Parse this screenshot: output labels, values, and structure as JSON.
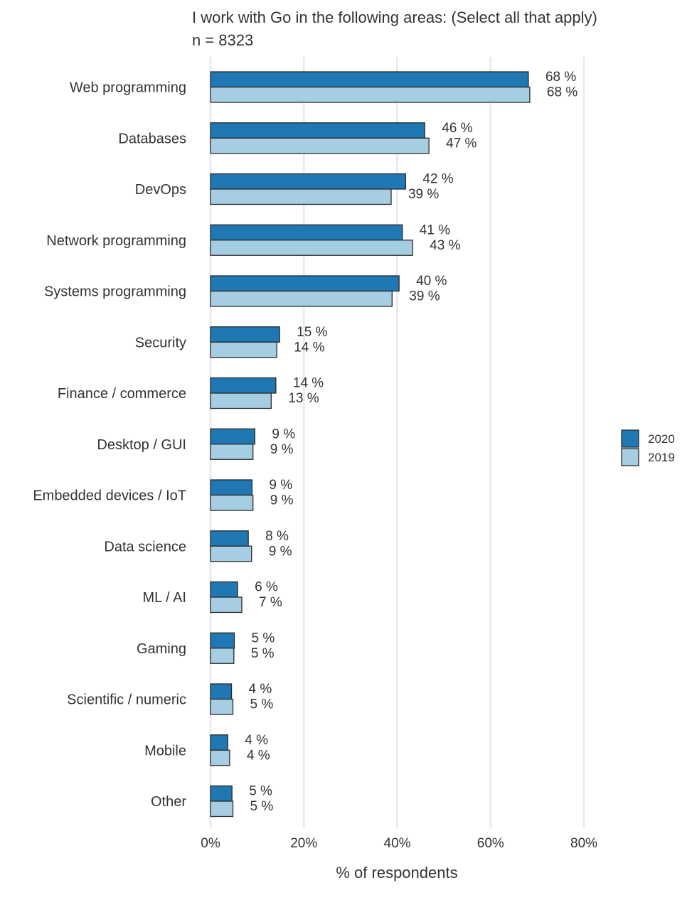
{
  "chart_data": {
    "type": "bar",
    "orientation": "horizontal",
    "title": "I work with Go in the following areas: (Select all that apply)",
    "subtitle": "n = 8323",
    "xlabel": "% of respondents",
    "ylabel": "",
    "xlim": [
      0,
      80
    ],
    "xticks": [
      0,
      20,
      40,
      60,
      80
    ],
    "xtick_labels": [
      "0%",
      "20%",
      "40%",
      "60%",
      "80%"
    ],
    "grid": "vertical",
    "legend_position": "right",
    "categories": [
      "Web programming",
      "Databases",
      "DevOps",
      "Network programming",
      "Systems programming",
      "Security",
      "Finance / commerce",
      "Desktop / GUI",
      "Embedded devices / IoT",
      "Data science",
      "ML / AI",
      "Gaming",
      "Scientific / numeric",
      "Mobile",
      "Other"
    ],
    "series": [
      {
        "name": "2020",
        "color": "#1f78b4",
        "values": [
          68.1,
          45.9,
          41.8,
          41.1,
          40.4,
          14.8,
          14.0,
          9.5,
          8.9,
          8.1,
          5.8,
          5.1,
          4.5,
          3.7,
          4.6
        ],
        "labels": [
          "68 %",
          "46 %",
          "42 %",
          "41 %",
          "40 %",
          "15 %",
          "14 %",
          "9 %",
          "9 %",
          "8 %",
          "6 %",
          "5 %",
          "4 %",
          "4 %",
          "5 %"
        ]
      },
      {
        "name": "2019",
        "color": "#a6cee3",
        "values": [
          68.4,
          46.8,
          38.7,
          43.3,
          38.9,
          14.2,
          13.0,
          9.1,
          9.1,
          8.8,
          6.7,
          5.0,
          4.8,
          4.1,
          4.8
        ],
        "labels": [
          "68 %",
          "47 %",
          "39 %",
          "43 %",
          "39 %",
          "14 %",
          "13 %",
          "9 %",
          "9 %",
          "9 %",
          "7 %",
          "5 %",
          "5 %",
          "4 %",
          "5 %"
        ]
      }
    ]
  }
}
